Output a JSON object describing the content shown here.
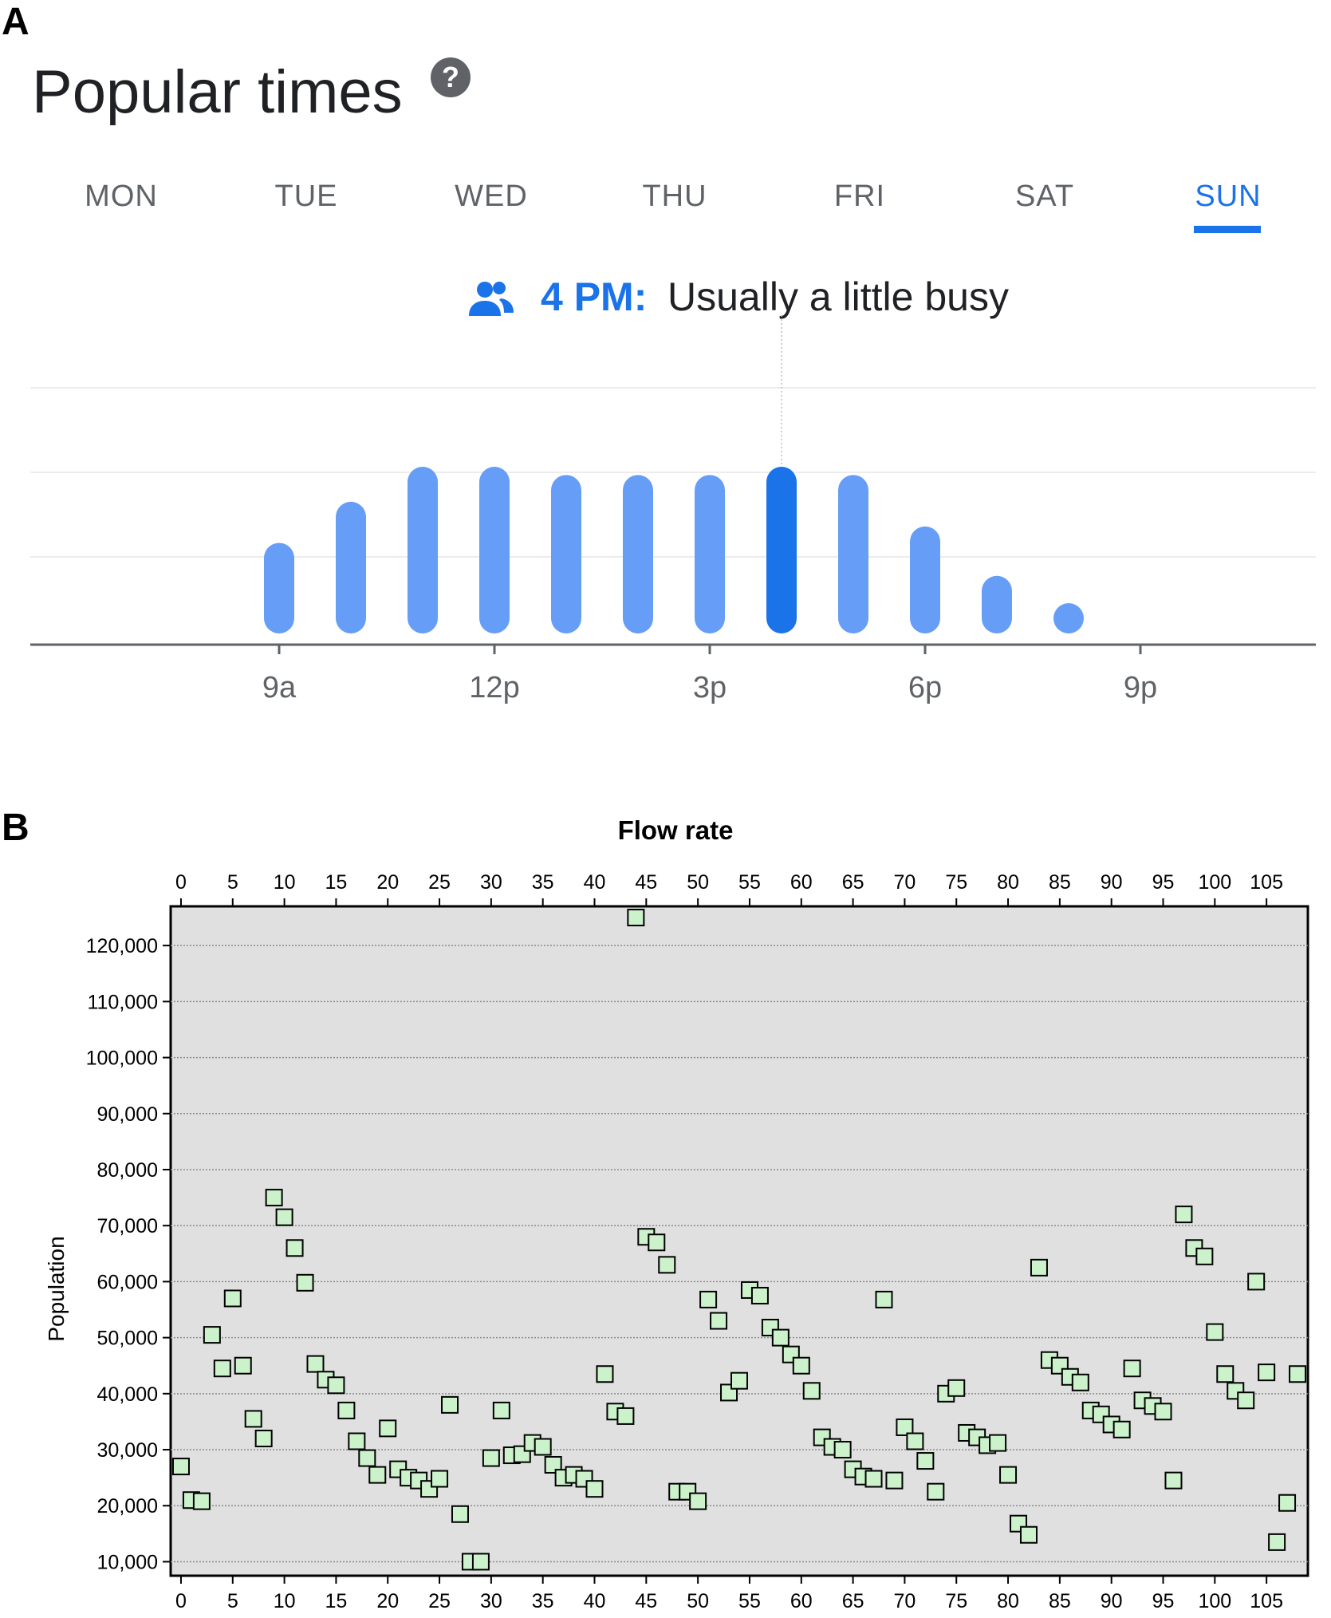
{
  "panels": {
    "a": "A",
    "b": "B"
  },
  "popular_times": {
    "title": "Popular times",
    "help_icon": "?",
    "days": [
      "MON",
      "TUE",
      "WED",
      "THU",
      "FRI",
      "SAT",
      "SUN"
    ],
    "selected_day": "SUN",
    "status_icon": "people-icon",
    "status_time": "4 PM:",
    "status_text": "Usually a little busy",
    "accent_color": "#1a73e8",
    "bar_color": "#669df6"
  },
  "chart_data": [
    {
      "type": "bar",
      "categories": [
        "9a",
        "10a",
        "11a",
        "12p",
        "1p",
        "2p",
        "3p",
        "4p",
        "5p",
        "6p",
        "7p",
        "8p"
      ],
      "values": [
        44,
        64,
        81,
        81,
        77,
        77,
        77,
        81,
        77,
        52,
        28,
        6
      ],
      "highlight_index": 7,
      "x_tick_labels": [
        "9a",
        "12p",
        "3p",
        "6p",
        "9p"
      ],
      "ylim": [
        0,
        100
      ],
      "grid": true
    },
    {
      "type": "scatter",
      "title": "Flow rate",
      "ylabel": "Population",
      "xlim": [
        -1,
        109
      ],
      "ylim": [
        7500,
        127000
      ],
      "x_ticks": [
        0,
        5,
        10,
        15,
        20,
        25,
        30,
        35,
        40,
        45,
        50,
        55,
        60,
        65,
        70,
        75,
        80,
        85,
        90,
        95,
        100,
        105
      ],
      "y_ticks": [
        10000,
        20000,
        30000,
        40000,
        50000,
        60000,
        70000,
        80000,
        90000,
        100000,
        110000,
        120000
      ],
      "y_tick_labels": [
        "10,000",
        "20,000",
        "30,000",
        "40,000",
        "50,000",
        "60,000",
        "70,000",
        "80,000",
        "90,000",
        "100,000",
        "110,000",
        "120,000"
      ],
      "grid": true,
      "marker": "square",
      "marker_color": "#ccf2cc",
      "plot_background": "#e0e0e0",
      "y": [
        27000,
        21000,
        20800,
        50500,
        44500,
        57000,
        45000,
        35500,
        32000,
        75000,
        71500,
        66000,
        59800,
        45300,
        42500,
        41500,
        37000,
        31500,
        28500,
        25500,
        33800,
        26500,
        25000,
        24500,
        23000,
        24800,
        38000,
        18500,
        10000,
        10000,
        28500,
        37000,
        29000,
        29200,
        31200,
        30500,
        27300,
        25000,
        25500,
        24800,
        23000,
        43500,
        36800,
        36000,
        125000,
        68000,
        67000,
        63000,
        22500,
        22500,
        20800,
        56800,
        53000,
        40200,
        42300,
        58500,
        57500,
        51800,
        50000,
        47000,
        45000,
        40500,
        32200,
        30500,
        30000,
        26500,
        25200,
        24800,
        56800,
        24500,
        34000,
        31500,
        28000,
        22500,
        40000,
        41000,
        33000,
        32200,
        30800,
        31200,
        25500,
        16800,
        14800,
        62500,
        46000,
        45000,
        43000,
        42000,
        37000,
        36300,
        34500,
        33600,
        44500,
        38800,
        37800,
        36800,
        24500,
        72000,
        66000,
        64500,
        51000,
        43500,
        40500,
        38800,
        60000,
        43800,
        13500,
        20500,
        43500
      ]
    }
  ]
}
